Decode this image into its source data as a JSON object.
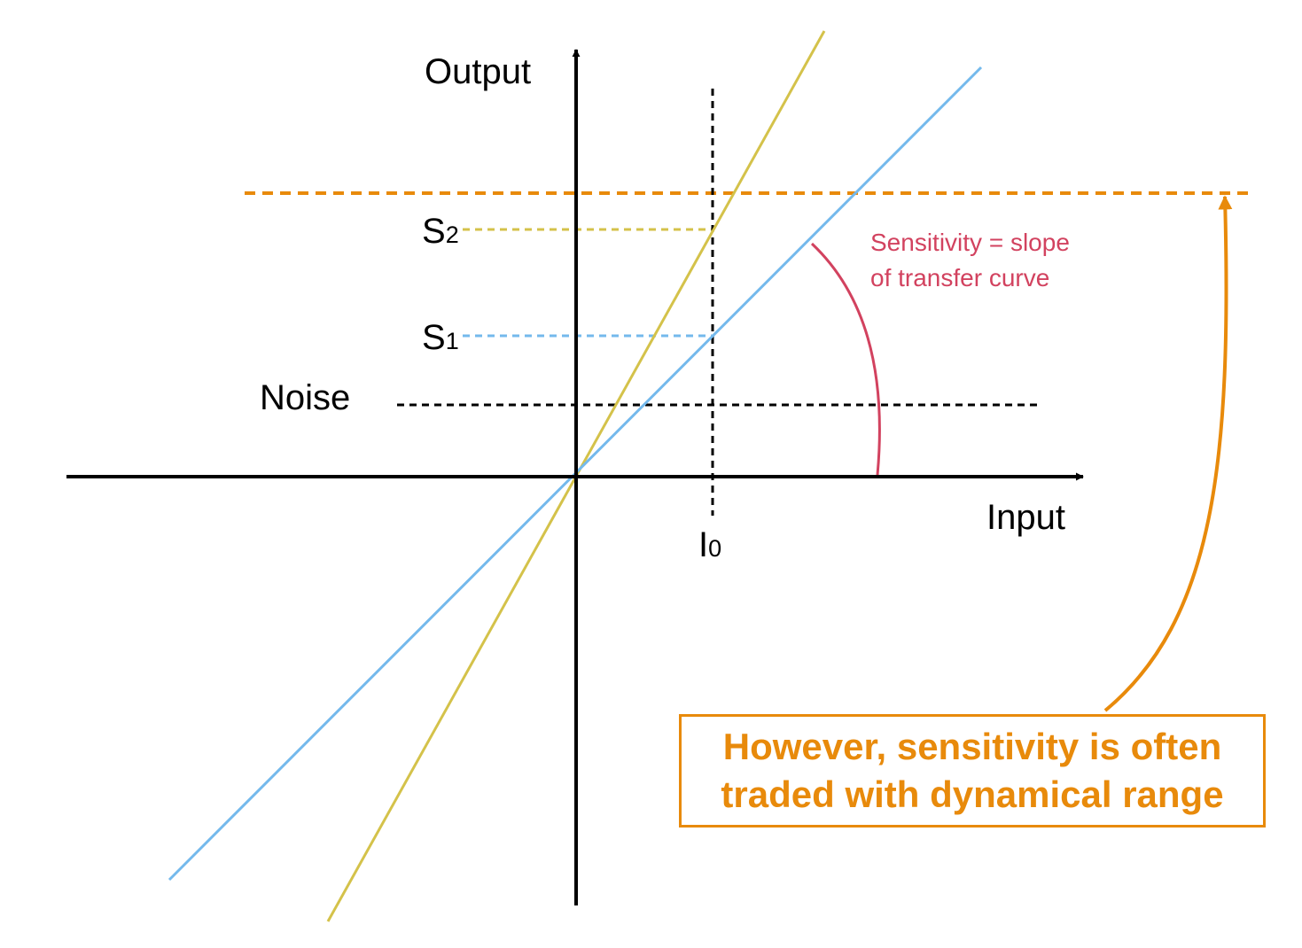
{
  "axes": {
    "y_label": "Output",
    "x_label": "Input"
  },
  "levels": {
    "s2": {
      "letter": "S",
      "subscript": "2"
    },
    "s1": {
      "letter": "S",
      "subscript": "1"
    },
    "noise": "Noise",
    "i0": {
      "letter": "I",
      "subscript": "0"
    }
  },
  "annotation": {
    "line1": "Sensitivity = slope",
    "line2": "of transfer curve"
  },
  "callout": {
    "line1": "However, sensitivity is often",
    "line2": "traded with dynamical range"
  },
  "colors": {
    "axis": "#000000",
    "curve_s1": "#74b9ec",
    "curve_s2": "#d4c24a",
    "noise": "#000000",
    "saturation": "#e88a0b",
    "annotation": "#d2425f",
    "callout": "#e88a0b"
  }
}
